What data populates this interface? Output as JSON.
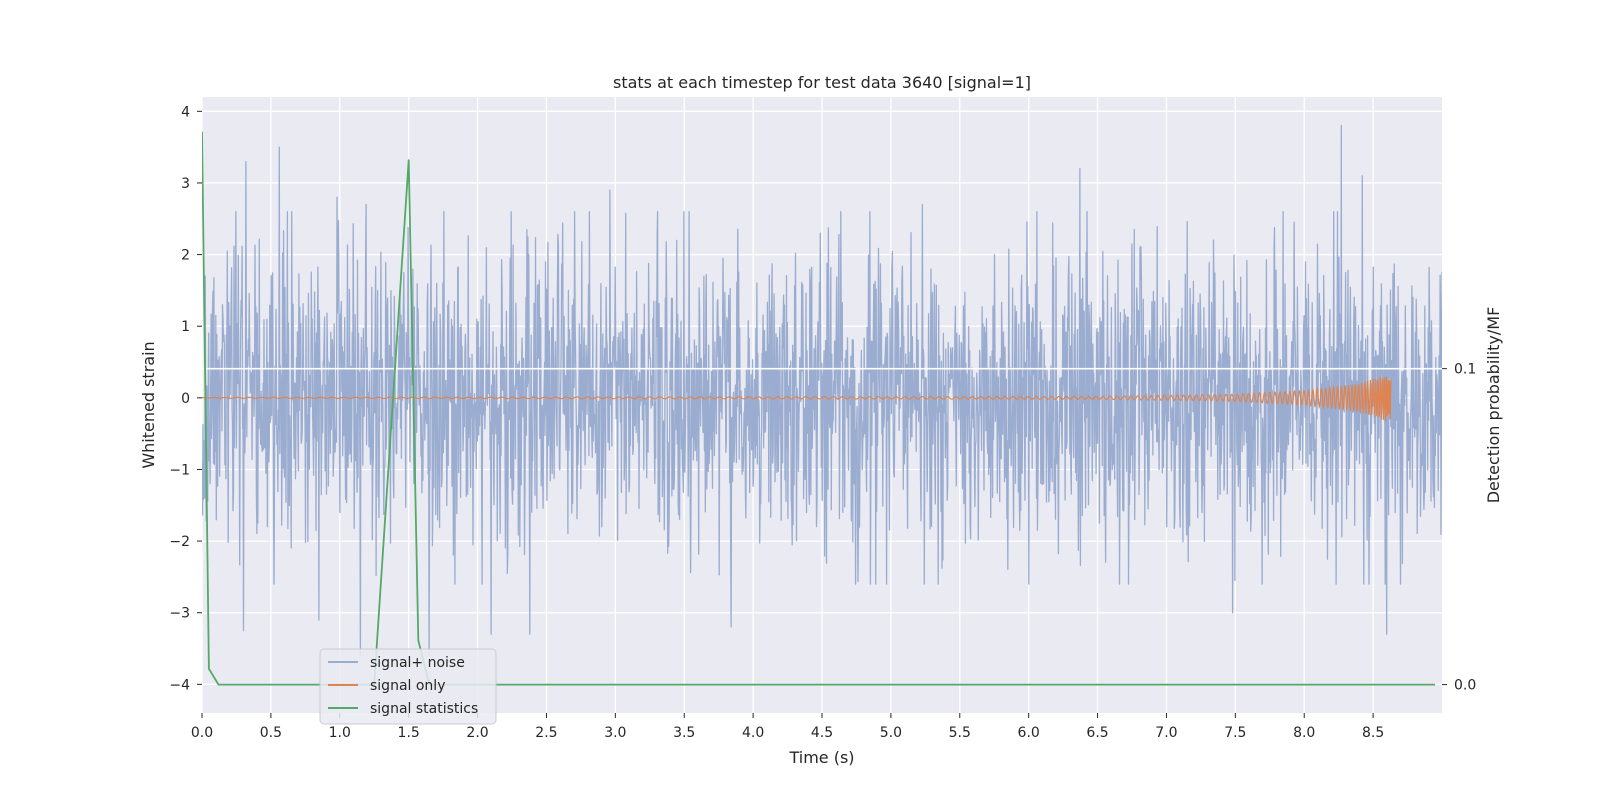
{
  "chart_data": {
    "type": "line",
    "title": "stats at each timestep for test data 3640 [signal=1]",
    "xlabel": "Time (s)",
    "ylabel": "Whitened strain",
    "ylabel_right": "Detection probability/MF",
    "xlim": [
      0,
      9
    ],
    "ylim": [
      -4.4,
      4.2
    ],
    "ylim_right": [
      -0.009,
      0.186
    ],
    "x_ticks": [
      0.0,
      0.5,
      1.0,
      1.5,
      2.0,
      2.5,
      3.0,
      3.5,
      4.0,
      4.5,
      5.0,
      5.5,
      6.0,
      6.5,
      7.0,
      7.5,
      8.0,
      8.5
    ],
    "x_tick_labels": [
      "0.0",
      "0.5",
      "1.0",
      "1.5",
      "2.0",
      "2.5",
      "3.0",
      "3.5",
      "4.0",
      "4.5",
      "5.0",
      "5.5",
      "6.0",
      "6.5",
      "7.0",
      "7.5",
      "8.0",
      "8.5"
    ],
    "y_ticks": [
      -4,
      -3,
      -2,
      -1,
      0,
      1,
      2,
      3,
      4
    ],
    "y_tick_labels": [
      "−4",
      "−3",
      "−2",
      "−1",
      "0",
      "1",
      "2",
      "3",
      "4"
    ],
    "y_right_ticks": [
      0.0,
      0.1
    ],
    "y_right_tick_labels": [
      "0.0",
      "0.1"
    ],
    "grid": true,
    "legend_position": "lower-left",
    "series": [
      {
        "name": "signal+ noise",
        "color": "#9aaccf",
        "axis": "left",
        "kind": "noise",
        "x_range": [
          0,
          9
        ],
        "typical_amplitude": [
          -1.8,
          1.9
        ],
        "peaks": [
          {
            "x": 0.32,
            "y": 3.3
          },
          {
            "x": 0.56,
            "y": 3.5
          },
          {
            "x": 0.98,
            "y": 2.8
          },
          {
            "x": 1.19,
            "y": 2.7
          },
          {
            "x": 2.96,
            "y": 2.9
          },
          {
            "x": 5.23,
            "y": 2.7
          },
          {
            "x": 6.37,
            "y": 3.2
          },
          {
            "x": 8.27,
            "y": 3.8
          },
          {
            "x": 8.42,
            "y": 3.1
          },
          {
            "x": 0.3,
            "y": -3.25
          },
          {
            "x": 0.85,
            "y": -3.1
          },
          {
            "x": 1.15,
            "y": -3.6
          },
          {
            "x": 1.65,
            "y": -3.6
          },
          {
            "x": 2.1,
            "y": -3.3
          },
          {
            "x": 2.38,
            "y": -3.3
          },
          {
            "x": 3.84,
            "y": -3.2
          },
          {
            "x": 7.48,
            "y": -3.0
          },
          {
            "x": 8.6,
            "y": -3.3
          }
        ]
      },
      {
        "name": "signal only",
        "color": "#dd8452",
        "axis": "left",
        "kind": "chirp",
        "x_range": [
          0,
          8.63
        ],
        "envelope": [
          {
            "x": 0.0,
            "y": 0.005
          },
          {
            "x": 6.5,
            "y": 0.02
          },
          {
            "x": 7.5,
            "y": 0.05
          },
          {
            "x": 8.0,
            "y": 0.1
          },
          {
            "x": 8.4,
            "y": 0.2
          },
          {
            "x": 8.6,
            "y": 0.33
          },
          {
            "x": 8.63,
            "y": 0.3
          }
        ]
      },
      {
        "name": "signal statistics",
        "color": "#55a868",
        "axis": "right",
        "kind": "line",
        "x": [
          0.0,
          0.05,
          0.12,
          1.25,
          1.5,
          1.57,
          1.65,
          8.95
        ],
        "y": [
          0.175,
          0.005,
          0.0,
          0.0,
          0.166,
          0.014,
          0.0,
          0.0
        ]
      }
    ],
    "hline": {
      "axis": "right",
      "y": 0.1,
      "color": "#ffffff"
    }
  }
}
